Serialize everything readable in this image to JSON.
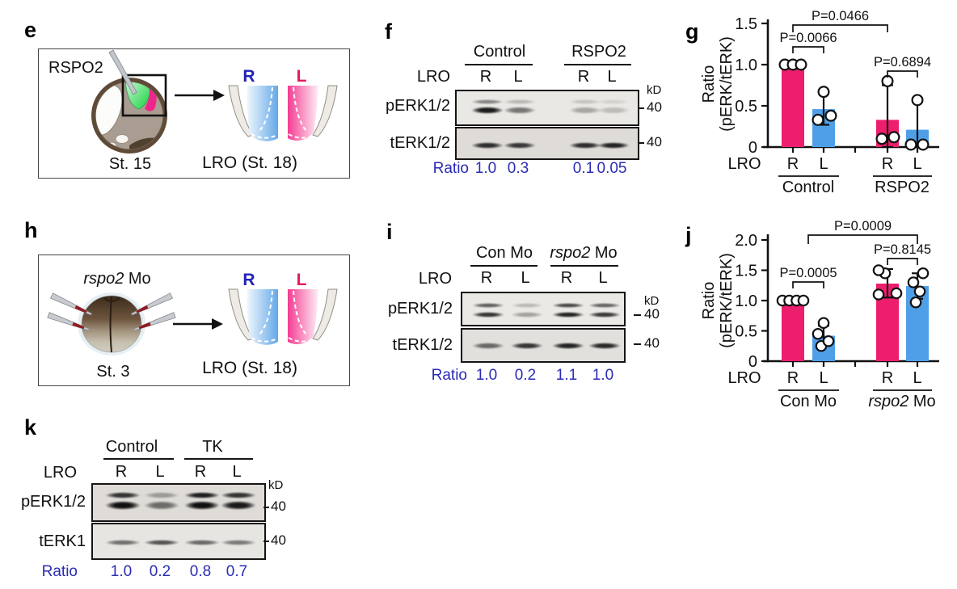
{
  "colors": {
    "pink": "#EE1E6E",
    "blue": "#4F9FE8",
    "accent_text_blue": "#2B2BB4",
    "r_label_blue": "#2222B8",
    "l_label_pink": "#E8195D"
  },
  "panel_e": {
    "label": "e",
    "injection_label": "RSPO2",
    "stage": "St. 15",
    "lro": {
      "r": "R",
      "l": "L",
      "caption": "LRO (St. 18)"
    }
  },
  "panel_f": {
    "label": "f",
    "groups": [
      {
        "italic": "",
        "text": "Control"
      },
      {
        "italic": "",
        "text": "RSPO2"
      }
    ],
    "row_label": "LRO",
    "lanes": [
      "R",
      "L",
      "R",
      "L"
    ],
    "kd": "kD",
    "rows": [
      {
        "label": "pERK1/2",
        "marker": "40"
      },
      {
        "label": "tERK1/2",
        "marker": "40"
      }
    ],
    "bands": {
      "pERK12_upper": [
        0.45,
        0.22,
        0.16,
        0.1
      ],
      "pERK12_lower": [
        0.95,
        0.52,
        0.3,
        0.2
      ],
      "tERK12": [
        0.85,
        0.8,
        0.85,
        0.9
      ]
    },
    "ratio_label": "Ratio",
    "ratios": [
      "1.0",
      "0.3",
      "0.1",
      "0.05"
    ]
  },
  "panel_g": {
    "label": "g"
  },
  "panel_h": {
    "label": "h",
    "injection": {
      "italic": "rspo2",
      "text": " Mo"
    },
    "stage": "St. 3",
    "lro": {
      "r": "R",
      "l": "L",
      "caption": "LRO (St. 18)"
    }
  },
  "panel_i": {
    "label": "i",
    "groups": [
      {
        "italic": "",
        "text": "Con Mo"
      },
      {
        "italic": "rspo2",
        "text": " Mo"
      }
    ],
    "row_label": "LRO",
    "lanes": [
      "R",
      "L",
      "R",
      "L"
    ],
    "kd": "kD",
    "rows": [
      {
        "label": "pERK1/2",
        "marker": "40"
      },
      {
        "label": "tERK1/2",
        "marker": "40"
      }
    ],
    "bands": {
      "pERK12_upper": [
        0.62,
        0.22,
        0.72,
        0.6
      ],
      "pERK12_lower": [
        0.82,
        0.32,
        0.9,
        0.8
      ],
      "tERK12": [
        0.58,
        0.82,
        0.9,
        0.88
      ]
    },
    "ratio_label": "Ratio",
    "ratios": [
      "1.0",
      "0.2",
      "1.1",
      "1.0"
    ]
  },
  "panel_j": {
    "label": "j"
  },
  "panel_k": {
    "label": "k",
    "groups": [
      {
        "italic": "",
        "text": "Control"
      },
      {
        "italic": "",
        "text": "TK"
      }
    ],
    "row_label": "LRO",
    "lanes": [
      "R",
      "L",
      "R",
      "L"
    ],
    "kd": "kD",
    "rows": [
      {
        "label": "pERK1/2",
        "marker": "40"
      },
      {
        "label": "tERK1",
        "marker": "40"
      }
    ],
    "bands": {
      "pERK12_upper": [
        0.82,
        0.32,
        0.92,
        0.82
      ],
      "pERK12_lower": [
        1.0,
        0.55,
        1.0,
        0.95
      ],
      "tERK1": [
        0.55,
        0.68,
        0.58,
        0.5
      ]
    },
    "ratio_label": "Ratio",
    "ratios": [
      "1.0",
      "0.2",
      "0.8",
      "0.7"
    ]
  },
  "chart_data": [
    {
      "id": "g",
      "type": "bar",
      "title": "",
      "ylabel": "Ratio (pERK/tERK)",
      "ylabel_lines": [
        "Ratio",
        "(pERK/tERK)"
      ],
      "ylim": [
        0,
        1.5
      ],
      "yticks": [
        "0",
        "0.5",
        "1.0",
        "1.5"
      ],
      "x_axis_prefix": "LRO",
      "categories": [
        "R",
        "L",
        "R",
        "L"
      ],
      "groups": [
        {
          "italic": "",
          "text": "Control"
        },
        {
          "italic": "",
          "text": "RSPO2"
        }
      ],
      "values": [
        1.0,
        0.46,
        0.33,
        0.21
      ],
      "bar_colors": [
        "#EE1E6E",
        "#4F9FE8",
        "#EE1E6E",
        "#4F9FE8"
      ],
      "replicates": [
        [
          1.0,
          1.0,
          1.0
        ],
        [
          0.33,
          0.38,
          0.67
        ],
        [
          0.1,
          0.12,
          0.8
        ],
        [
          0.03,
          0.03,
          0.57
        ]
      ],
      "error_low": [
        1.0,
        0.27,
        0.0,
        0.0
      ],
      "error_high": [
        1.0,
        0.655,
        0.75,
        0.55
      ],
      "significance": [
        {
          "label": "P=0.0066",
          "between": [
            "Control R",
            "Control L"
          ]
        },
        {
          "label": "P=0.0466",
          "between": [
            "Control R",
            "RSPO2 R"
          ]
        },
        {
          "label": "P=0.6894",
          "between": [
            "RSPO2 R",
            "RSPO2 L"
          ]
        }
      ]
    },
    {
      "id": "j",
      "type": "bar",
      "title": "",
      "ylabel": "Ratio (pERK/tERK)",
      "ylabel_lines": [
        "Ratio",
        "(pERK/tERK)"
      ],
      "ylim": [
        0,
        2.0
      ],
      "yticks": [
        "0",
        "0.5",
        "1.0",
        "1.5",
        "2.0"
      ],
      "x_axis_prefix": "LRO",
      "categories": [
        "R",
        "L",
        "R",
        "L"
      ],
      "groups": [
        {
          "italic": "",
          "text": "Con Mo"
        },
        {
          "italic": "rspo2",
          "text": " Mo"
        }
      ],
      "values": [
        1.0,
        0.42,
        1.28,
        1.24
      ],
      "bar_colors": [
        "#EE1E6E",
        "#4F9FE8",
        "#EE1E6E",
        "#4F9FE8"
      ],
      "replicates": [
        [
          1.0,
          1.0,
          1.0,
          1.0
        ],
        [
          0.25,
          0.33,
          0.45,
          0.63
        ],
        [
          1.1,
          1.12,
          1.45,
          1.5
        ],
        [
          0.97,
          1.15,
          1.3,
          1.45
        ]
      ],
      "error_low": [
        1.0,
        0.25,
        1.05,
        1.03
      ],
      "error_high": [
        1.0,
        0.585,
        1.52,
        1.45
      ],
      "significance": [
        {
          "label": "P=0.0005",
          "between": [
            "Con Mo R",
            "Con Mo L"
          ]
        },
        {
          "label": "P=0.0009",
          "between": [
            "Con Mo L",
            "rspo2 Mo L"
          ]
        },
        {
          "label": "P=0.8145",
          "between": [
            "rspo2 Mo R",
            "rspo2 Mo L"
          ]
        }
      ]
    }
  ]
}
